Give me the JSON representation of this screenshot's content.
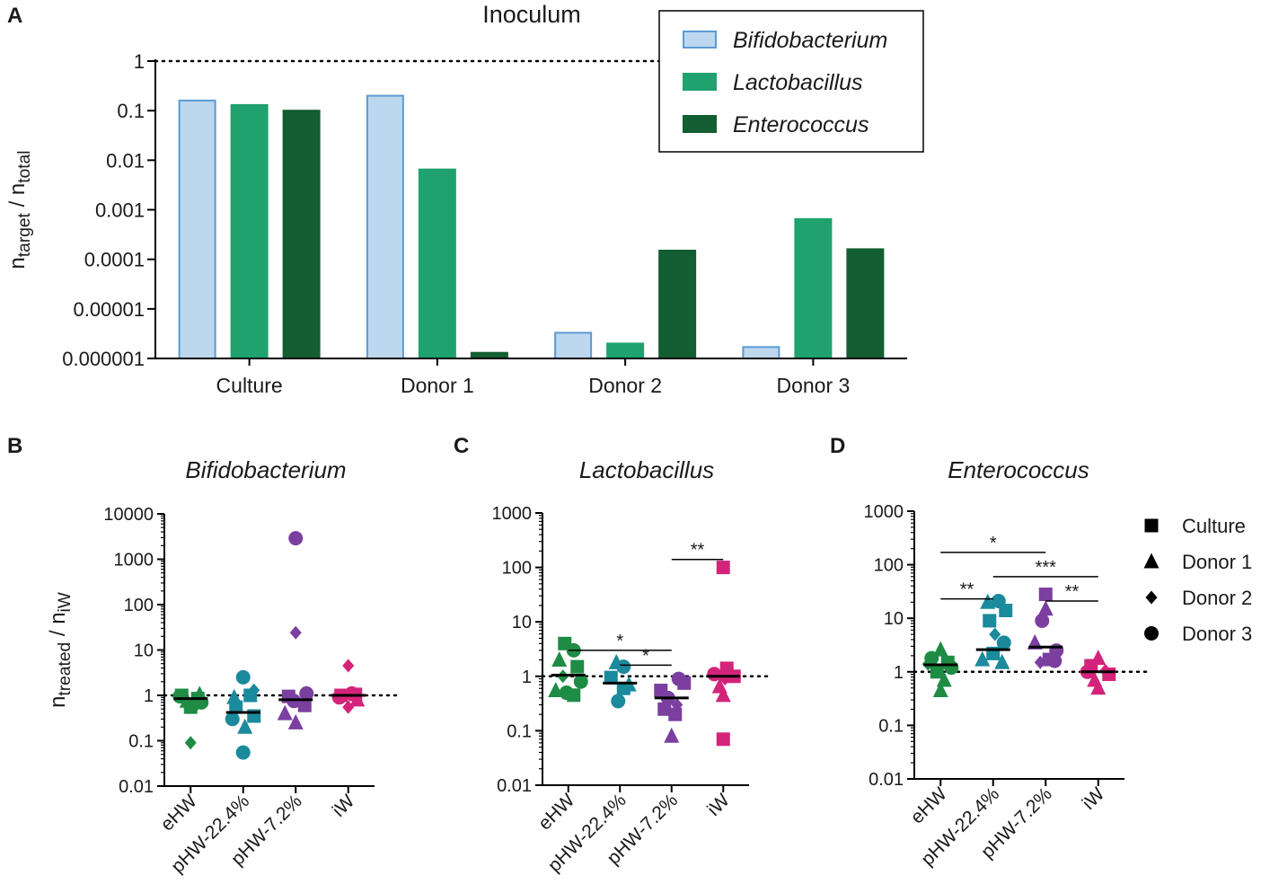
{
  "chart_data": [
    {
      "id": "A",
      "type": "bar",
      "panel_label": "A",
      "title": "Inoculum",
      "ylabel_main": "n",
      "ylabel_sub1": "target",
      "ylabel_sep": " / n",
      "ylabel_sub2": "total",
      "yscale": "log",
      "ylim": [
        1e-06,
        1
      ],
      "yticks": [
        1,
        0.1,
        0.01,
        0.001,
        0.0001,
        1e-05,
        1e-06
      ],
      "ytick_labels": [
        "1",
        "0.1",
        "0.01",
        "0.001",
        "0.0001",
        "0.00001",
        "0.000001"
      ],
      "reference_line": 1,
      "categories": [
        "Culture",
        "Donor 1",
        "Donor 2",
        "Donor 3"
      ],
      "series": [
        {
          "name": "Bifidobacterium",
          "color": "#bdd7ee",
          "edge": "#5b9bd5",
          "values": [
            0.16,
            0.2,
            3.3e-06,
            1.7e-06
          ]
        },
        {
          "name": "Lactobacillus",
          "color": "#1fa26e",
          "edge": "#1fa26e",
          "values": [
            0.13,
            0.0065,
            2e-06,
            0.00065
          ]
        },
        {
          "name": "Enterococcus",
          "color": "#135e32",
          "edge": "#135e32",
          "values": [
            0.1,
            1.3e-06,
            0.00015,
            0.00016
          ]
        }
      ],
      "legend_position": "top-right"
    },
    {
      "id": "B",
      "type": "scatter",
      "panel_label": "B",
      "title": "Bifidobacterium",
      "ylabel_main": "n",
      "ylabel_sub1": "treated",
      "ylabel_sep": " / n",
      "ylabel_sub2": "iW",
      "yscale": "log",
      "ylim": [
        0.01,
        10000
      ],
      "yticks": [
        10000,
        1000,
        100,
        10,
        1,
        0.1,
        0.01
      ],
      "ytick_labels": [
        "10000",
        "1000",
        "100",
        "10",
        "1",
        "0.1",
        "0.01"
      ],
      "reference_line": 1,
      "categories": [
        "eHW",
        "pHW-22.4%",
        "pHW-7.2%",
        "iW"
      ],
      "colors": [
        "#1e8c45",
        "#1a8a9c",
        "#7b3fa0",
        "#d4237a"
      ],
      "medians": [
        0.85,
        0.42,
        0.8,
        1.0
      ],
      "points": [
        [
          {
            "v": 1.0,
            "m": "square",
            "dx": -10
          },
          {
            "v": 0.85,
            "m": "square",
            "dx": 8
          },
          {
            "v": 0.55,
            "m": "square",
            "dx": 0
          },
          {
            "v": 0.75,
            "m": "triangle",
            "dx": -4
          },
          {
            "v": 1.05,
            "m": "triangle",
            "dx": 10
          },
          {
            "v": 0.6,
            "m": "circle",
            "dx": 2
          },
          {
            "v": 0.95,
            "m": "circle",
            "dx": -12
          },
          {
            "v": 0.09,
            "m": "diamond",
            "dx": 0
          },
          {
            "v": 0.7,
            "m": "circle",
            "dx": 12
          }
        ],
        [
          {
            "v": 1.0,
            "m": "square",
            "dx": 8
          },
          {
            "v": 0.55,
            "m": "square",
            "dx": -8
          },
          {
            "v": 0.35,
            "m": "square",
            "dx": 12
          },
          {
            "v": 0.9,
            "m": "triangle",
            "dx": -10
          },
          {
            "v": 0.2,
            "m": "triangle",
            "dx": 2
          },
          {
            "v": 2.5,
            "m": "circle",
            "dx": 0
          },
          {
            "v": 0.055,
            "m": "circle",
            "dx": 0
          },
          {
            "v": 0.3,
            "m": "circle",
            "dx": -12
          },
          {
            "v": 1.3,
            "m": "diamond",
            "dx": 12
          }
        ],
        [
          {
            "v": 2900,
            "m": "circle",
            "dx": 0
          },
          {
            "v": 24,
            "m": "diamond",
            "dx": 0
          },
          {
            "v": 0.95,
            "m": "square",
            "dx": -8
          },
          {
            "v": 0.6,
            "m": "square",
            "dx": 10
          },
          {
            "v": 0.25,
            "m": "triangle",
            "dx": 0
          },
          {
            "v": 0.4,
            "m": "triangle",
            "dx": -12
          },
          {
            "v": 1.1,
            "m": "circle",
            "dx": 12
          },
          {
            "v": 0.75,
            "m": "circle",
            "dx": -2
          }
        ],
        [
          {
            "v": 4.5,
            "m": "diamond",
            "dx": 0
          },
          {
            "v": 1.0,
            "m": "square",
            "dx": -8
          },
          {
            "v": 1.05,
            "m": "square",
            "dx": 8
          },
          {
            "v": 0.55,
            "m": "diamond",
            "dx": 0
          },
          {
            "v": 0.8,
            "m": "triangle",
            "dx": 10
          },
          {
            "v": 0.9,
            "m": "circle",
            "dx": -10
          },
          {
            "v": 1.1,
            "m": "circle",
            "dx": 4
          }
        ]
      ],
      "significance": []
    },
    {
      "id": "C",
      "type": "scatter",
      "panel_label": "C",
      "title": "Lactobacillus",
      "yscale": "log",
      "ylim": [
        0.01,
        1000
      ],
      "yticks": [
        1000,
        100,
        10,
        1,
        0.1,
        0.01
      ],
      "ytick_labels": [
        "1000",
        "100",
        "10",
        "1",
        "0.1",
        "0.01"
      ],
      "reference_line": 1,
      "categories": [
        "eHW",
        "pHW-22.4%",
        "pHW-7.2%",
        "iW"
      ],
      "colors": [
        "#1e8c45",
        "#1a8a9c",
        "#7b3fa0",
        "#d4237a"
      ],
      "medians": [
        1.05,
        0.75,
        0.4,
        1.0
      ],
      "points": [
        [
          {
            "v": 4.0,
            "m": "square",
            "dx": -4
          },
          {
            "v": 3.0,
            "m": "circle",
            "dx": 6
          },
          {
            "v": 2.0,
            "m": "triangle",
            "dx": -10
          },
          {
            "v": 1.5,
            "m": "square",
            "dx": 10
          },
          {
            "v": 1.0,
            "m": "diamond",
            "dx": -6
          },
          {
            "v": 0.8,
            "m": "circle",
            "dx": 14
          },
          {
            "v": 0.55,
            "m": "triangle",
            "dx": -14
          },
          {
            "v": 0.45,
            "m": "square",
            "dx": 6
          },
          {
            "v": 0.5,
            "m": "circle",
            "dx": -2
          }
        ],
        [
          {
            "v": 1.8,
            "m": "triangle",
            "dx": -4
          },
          {
            "v": 1.5,
            "m": "circle",
            "dx": 4
          },
          {
            "v": 0.95,
            "m": "square",
            "dx": -10
          },
          {
            "v": 0.7,
            "m": "triangle",
            "dx": 10
          },
          {
            "v": 0.6,
            "m": "square",
            "dx": 4
          },
          {
            "v": 0.35,
            "m": "circle",
            "dx": -2
          }
        ],
        [
          {
            "v": 0.9,
            "m": "circle",
            "dx": 8
          },
          {
            "v": 0.75,
            "m": "square",
            "dx": 14
          },
          {
            "v": 0.55,
            "m": "square",
            "dx": -12
          },
          {
            "v": 0.4,
            "m": "circle",
            "dx": -4
          },
          {
            "v": 0.3,
            "m": "diamond",
            "dx": 6
          },
          {
            "v": 0.25,
            "m": "square",
            "dx": -8
          },
          {
            "v": 0.2,
            "m": "square",
            "dx": 4
          },
          {
            "v": 0.08,
            "m": "triangle",
            "dx": 0
          }
        ],
        [
          {
            "v": 100,
            "m": "square",
            "dx": 0
          },
          {
            "v": 1.4,
            "m": "square",
            "dx": 4
          },
          {
            "v": 1.1,
            "m": "circle",
            "dx": -10
          },
          {
            "v": 1.0,
            "m": "square",
            "dx": 12
          },
          {
            "v": 0.9,
            "m": "diamond",
            "dx": 2
          },
          {
            "v": 0.65,
            "m": "triangle",
            "dx": -4
          },
          {
            "v": 0.45,
            "m": "triangle",
            "dx": 0
          },
          {
            "v": 0.07,
            "m": "square",
            "dx": 0
          }
        ]
      ],
      "significance": [
        {
          "from": 0,
          "to": 2,
          "y": 3.0,
          "label": "*"
        },
        {
          "from": 1,
          "to": 2,
          "y": 1.6,
          "label": "*"
        },
        {
          "from": 2,
          "to": 3,
          "y": 140,
          "label": "**"
        }
      ]
    },
    {
      "id": "D",
      "type": "scatter",
      "panel_label": "D",
      "title": "Enterococcus",
      "yscale": "log",
      "ylim": [
        0.01,
        1000
      ],
      "yticks": [
        1000,
        100,
        10,
        1,
        0.1,
        0.01
      ],
      "ytick_labels": [
        "1000",
        "100",
        "10",
        "1",
        "0.1",
        "0.01"
      ],
      "reference_line": 1,
      "categories": [
        "eHW",
        "pHW-22.4%",
        "pHW-7.2%",
        "iW"
      ],
      "colors": [
        "#1e8c45",
        "#1a8a9c",
        "#7b3fa0",
        "#d4237a"
      ],
      "medians": [
        1.35,
        2.6,
        2.9,
        1.0
      ],
      "points": [
        [
          {
            "v": 2.6,
            "m": "triangle",
            "dx": 0
          },
          {
            "v": 1.8,
            "m": "circle",
            "dx": -10
          },
          {
            "v": 1.5,
            "m": "square",
            "dx": 8
          },
          {
            "v": 1.4,
            "m": "diamond",
            "dx": -14
          },
          {
            "v": 1.2,
            "m": "circle",
            "dx": 12
          },
          {
            "v": 1.0,
            "m": "square",
            "dx": -4
          },
          {
            "v": 0.7,
            "m": "triangle",
            "dx": 4
          },
          {
            "v": 0.45,
            "m": "triangle",
            "dx": 0
          }
        ],
        [
          {
            "v": 20,
            "m": "triangle",
            "dx": -6
          },
          {
            "v": 21,
            "m": "circle",
            "dx": 6
          },
          {
            "v": 14,
            "m": "square",
            "dx": 14
          },
          {
            "v": 9,
            "m": "square",
            "dx": -4
          },
          {
            "v": 5,
            "m": "diamond",
            "dx": 2
          },
          {
            "v": 3.5,
            "m": "circle",
            "dx": 12
          },
          {
            "v": 1.7,
            "m": "triangle",
            "dx": -12
          },
          {
            "v": 1.5,
            "m": "triangle",
            "dx": 10
          },
          {
            "v": 2.2,
            "m": "square",
            "dx": 0
          }
        ],
        [
          {
            "v": 28,
            "m": "square",
            "dx": 0
          },
          {
            "v": 15,
            "m": "triangle",
            "dx": 0
          },
          {
            "v": 9,
            "m": "circle",
            "dx": -4
          },
          {
            "v": 3.5,
            "m": "triangle",
            "dx": -12
          },
          {
            "v": 2.5,
            "m": "circle",
            "dx": 12
          },
          {
            "v": 1.7,
            "m": "square",
            "dx": 4
          },
          {
            "v": 1.5,
            "m": "diamond",
            "dx": -6
          },
          {
            "v": 1.6,
            "m": "circle",
            "dx": 10
          }
        ],
        [
          {
            "v": 1.8,
            "m": "triangle",
            "dx": 0
          },
          {
            "v": 1.3,
            "m": "square",
            "dx": -8
          },
          {
            "v": 1.05,
            "m": "diamond",
            "dx": 8
          },
          {
            "v": 1.0,
            "m": "circle",
            "dx": -12
          },
          {
            "v": 0.9,
            "m": "square",
            "dx": 12
          },
          {
            "v": 0.7,
            "m": "triangle",
            "dx": -4
          },
          {
            "v": 0.5,
            "m": "triangle",
            "dx": 0
          }
        ]
      ],
      "significance": [
        {
          "from": 0,
          "to": 2,
          "y": 170,
          "label": "*"
        },
        {
          "from": 1,
          "to": 3,
          "y": 60,
          "label": "***"
        },
        {
          "from": 0,
          "to": 1,
          "y": 23,
          "label": "**"
        },
        {
          "from": 2,
          "to": 3,
          "y": 21,
          "label": "**"
        }
      ]
    }
  ],
  "marker_legend": [
    {
      "label": "Culture",
      "marker": "square"
    },
    {
      "label": "Donor 1",
      "marker": "triangle"
    },
    {
      "label": "Donor 2",
      "marker": "diamond"
    },
    {
      "label": "Donor 3",
      "marker": "circle"
    }
  ]
}
